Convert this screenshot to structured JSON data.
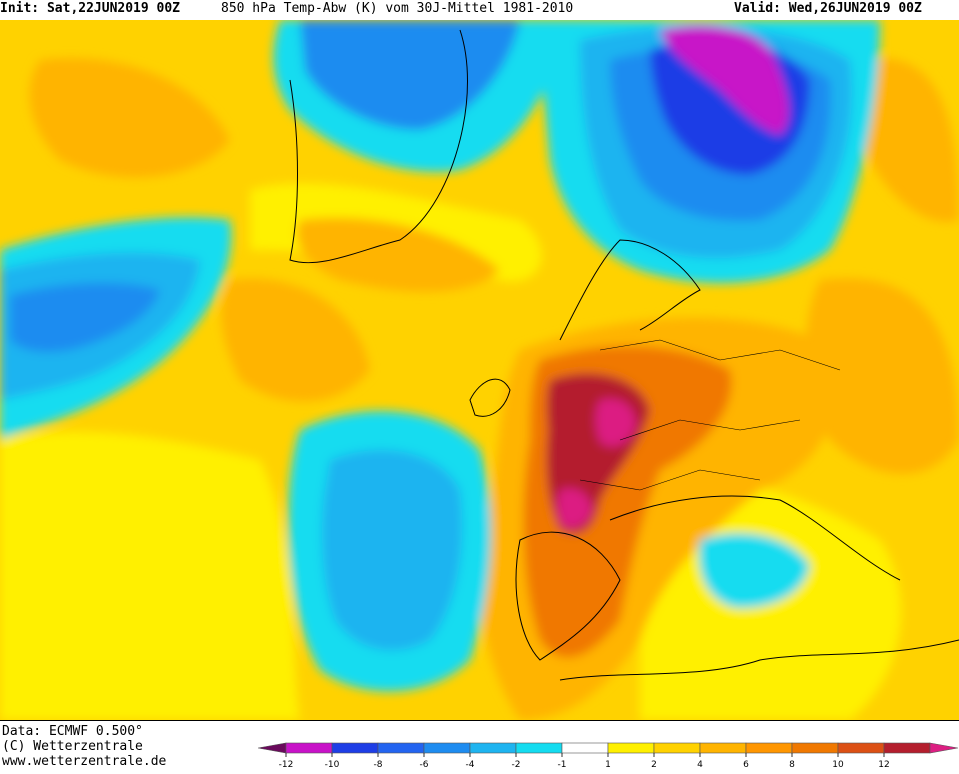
{
  "header": {
    "init_text": "Init: Sat,22JUN2019 00Z",
    "parameter_text": "850 hPa Temp-Abw (K) vom 30J-Mittel 1981-2010",
    "valid_text": "Valid: Wed,26JUN2019 00Z"
  },
  "footer": {
    "data_source": "Data: ECMWF  0.500°",
    "copyright": "(C) Wetterzentrale",
    "website": "www.wetterzentrale.de"
  },
  "legend": {
    "colors": [
      "#6a0a5c",
      "#c812c8",
      "#1e3ee6",
      "#2364f0",
      "#1e8cf0",
      "#1eb4f0",
      "#14dcf0",
      "#ffffff",
      "#fff000",
      "#ffd200",
      "#ffb400",
      "#ff9600",
      "#f07800",
      "#dc5014",
      "#b41e2d",
      "#dc1e82"
    ],
    "tick_labels": [
      "-12",
      "-10",
      "-8",
      "-6",
      "-4",
      "-2",
      "-1",
      "1",
      "2",
      "4",
      "6",
      "8",
      "10",
      "12"
    ]
  },
  "map": {
    "field_colors": {
      "warm_background": "#ffd200",
      "pale_warm": "#fff000",
      "orange": "#ffb400",
      "dark_orange": "#f07800",
      "red_brown": "#b41e2d",
      "magenta": "#dc1e82",
      "light_cyan": "#14dcf0",
      "cyan": "#1eb4f0",
      "blue": "#1e8cf0",
      "deep_blue": "#1e3ee6",
      "purple": "#c812c8"
    }
  }
}
